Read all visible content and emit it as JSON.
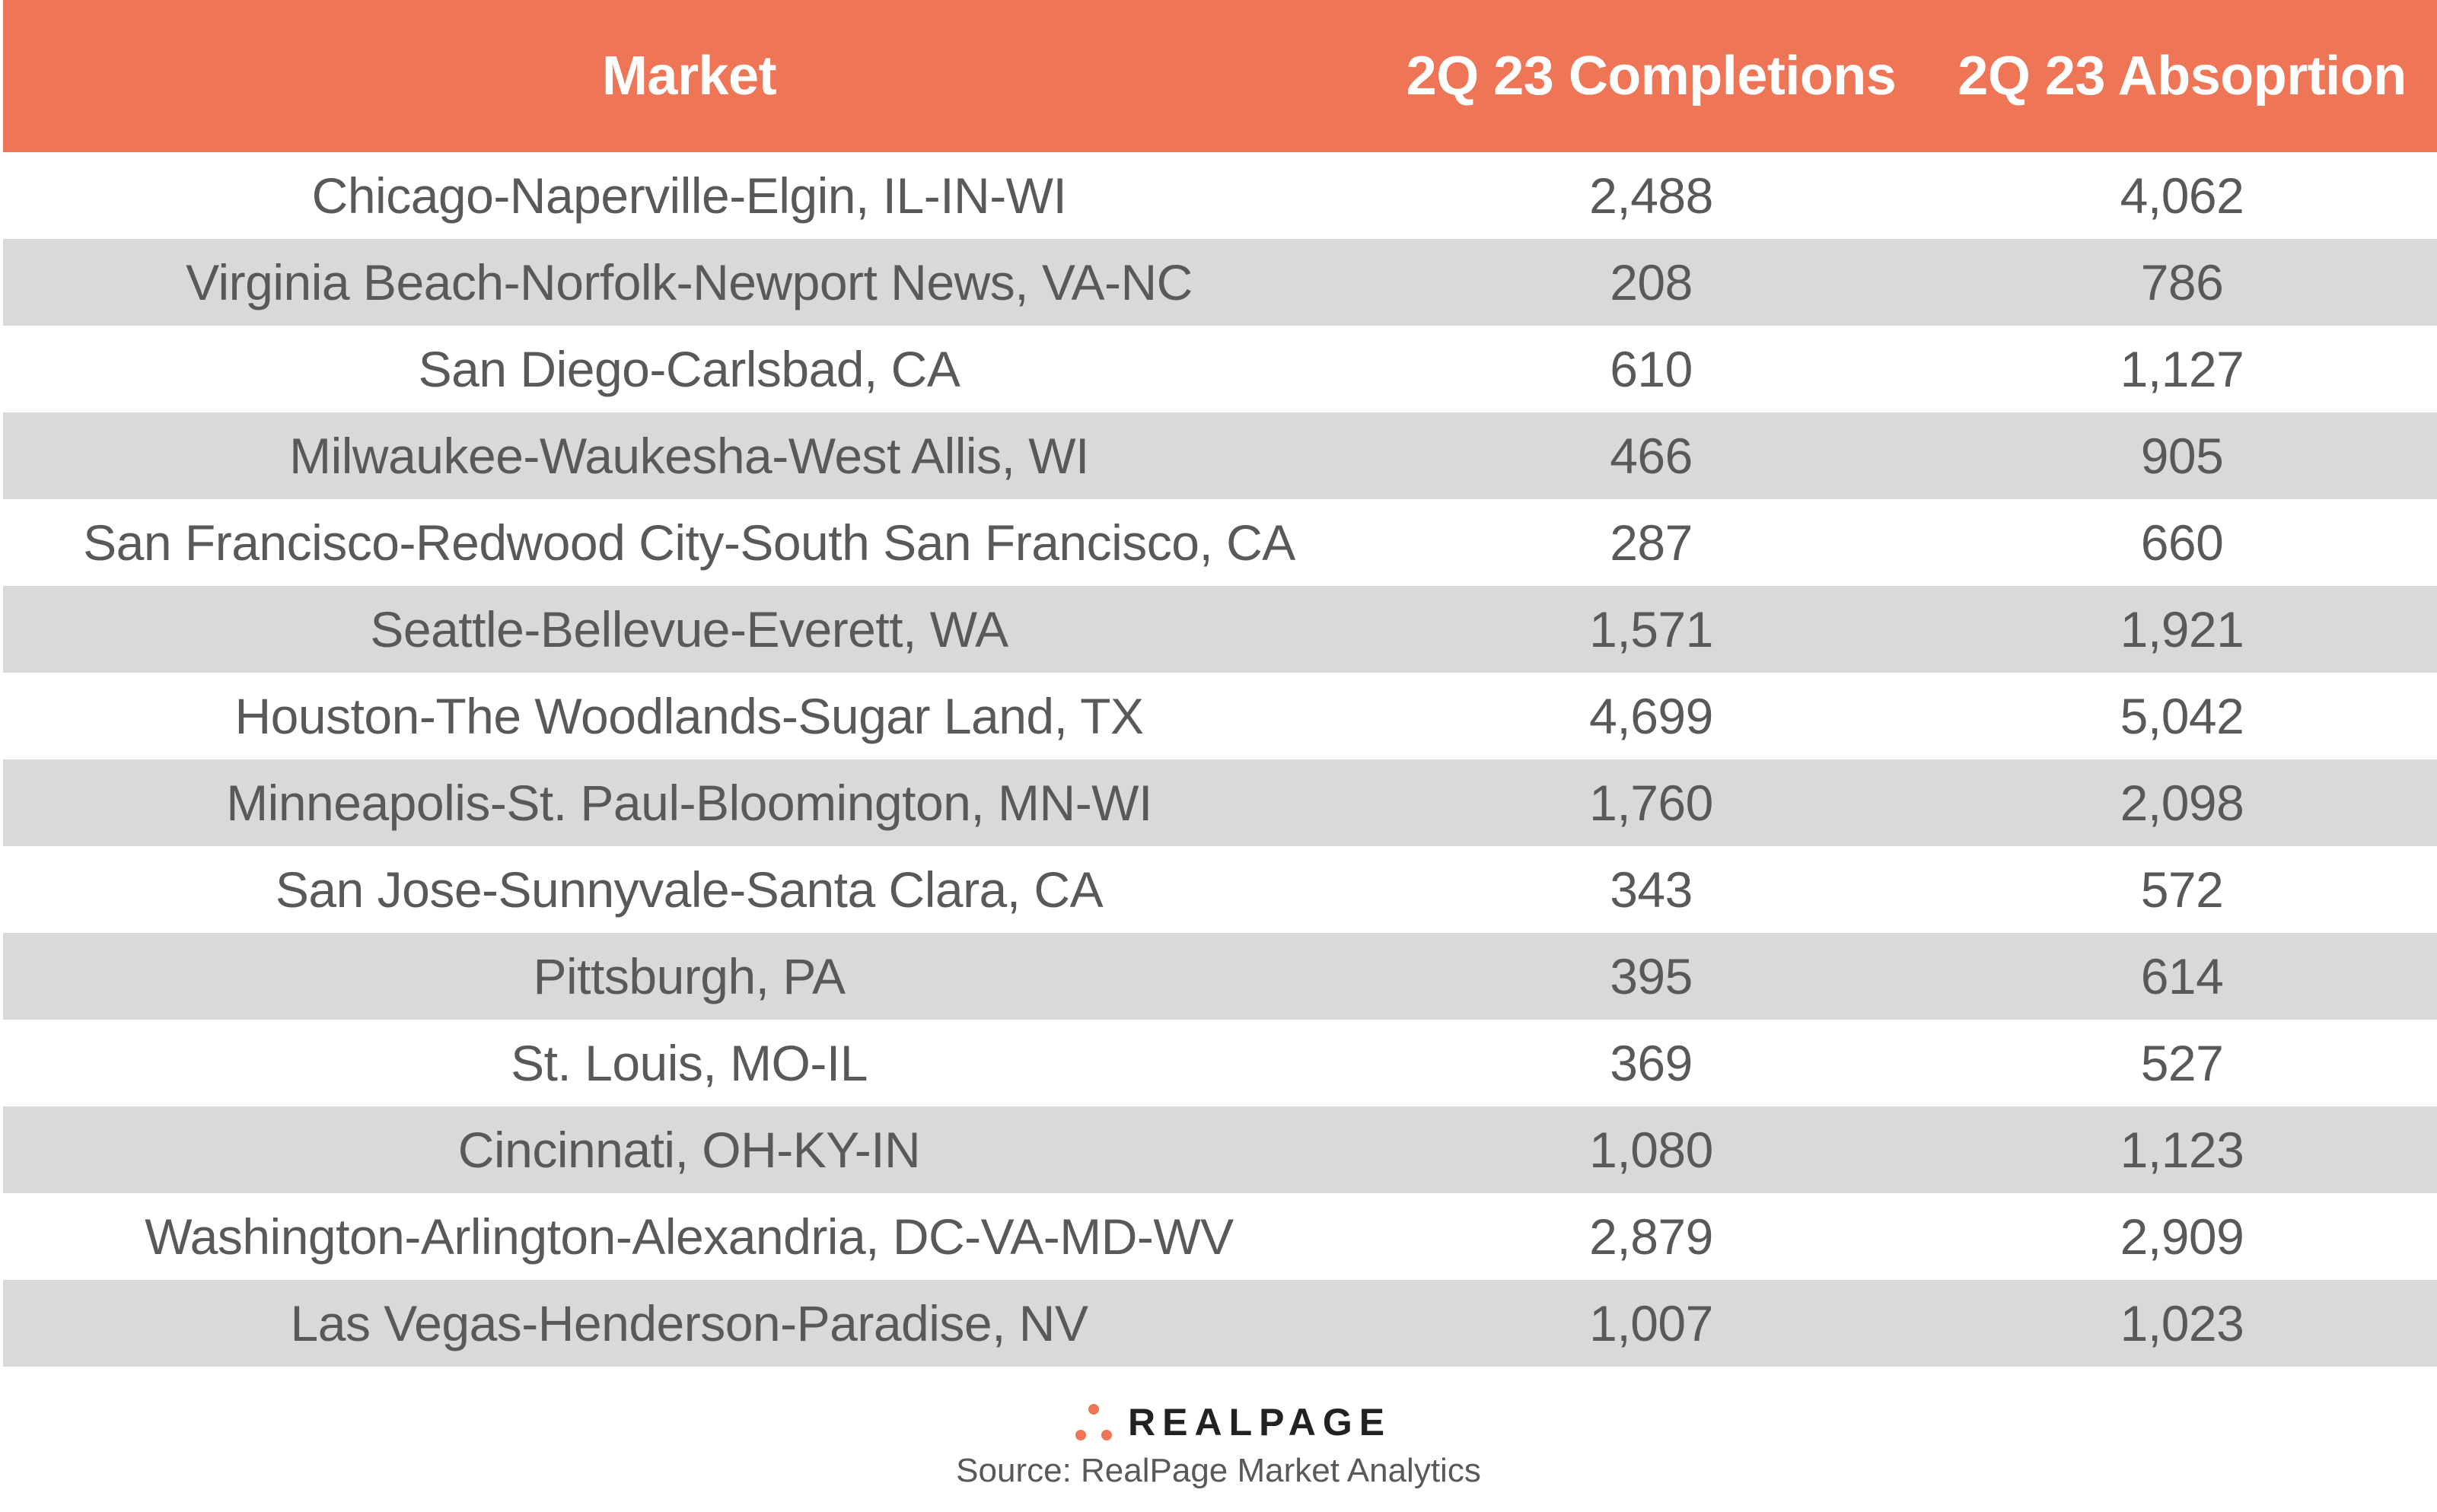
{
  "chart_data": {
    "type": "table",
    "columns": [
      "Market",
      "2Q 23 Completions",
      "2Q 23 Absoprtion"
    ],
    "rows": [
      {
        "market": "Chicago-Naperville-Elgin, IL-IN-WI",
        "completions": "2,488",
        "absorption": "4,062"
      },
      {
        "market": "Virginia Beach-Norfolk-Newport News, VA-NC",
        "completions": "208",
        "absorption": "786"
      },
      {
        "market": "San Diego-Carlsbad, CA",
        "completions": "610",
        "absorption": "1,127"
      },
      {
        "market": "Milwaukee-Waukesha-West Allis, WI",
        "completions": "466",
        "absorption": "905"
      },
      {
        "market": "San Francisco-Redwood City-South San Francisco, CA",
        "completions": "287",
        "absorption": "660"
      },
      {
        "market": "Seattle-Bellevue-Everett, WA",
        "completions": "1,571",
        "absorption": "1,921"
      },
      {
        "market": "Houston-The Woodlands-Sugar Land, TX",
        "completions": "4,699",
        "absorption": "5,042"
      },
      {
        "market": "Minneapolis-St. Paul-Bloomington, MN-WI",
        "completions": "1,760",
        "absorption": "2,098"
      },
      {
        "market": "San Jose-Sunnyvale-Santa Clara, CA",
        "completions": "343",
        "absorption": "572"
      },
      {
        "market": "Pittsburgh, PA",
        "completions": "395",
        "absorption": "614"
      },
      {
        "market": "St. Louis, MO-IL",
        "completions": "369",
        "absorption": "527"
      },
      {
        "market": "Cincinnati, OH-KY-IN",
        "completions": "1,080",
        "absorption": "1,123"
      },
      {
        "market": "Washington-Arlington-Alexandria, DC-VA-MD-WV",
        "completions": "2,879",
        "absorption": "2,909"
      },
      {
        "market": "Las Vegas-Henderson-Paradise, NV",
        "completions": "1,007",
        "absorption": "1,023"
      }
    ]
  },
  "colors": {
    "header_bg": "#ee7656",
    "alt_row_bg": "#d9d9d9",
    "text": "#595959",
    "logo_dot": "#ee7656"
  },
  "footer": {
    "logo_text": "REALPAGE",
    "source": "Source: RealPage Market Analytics"
  }
}
